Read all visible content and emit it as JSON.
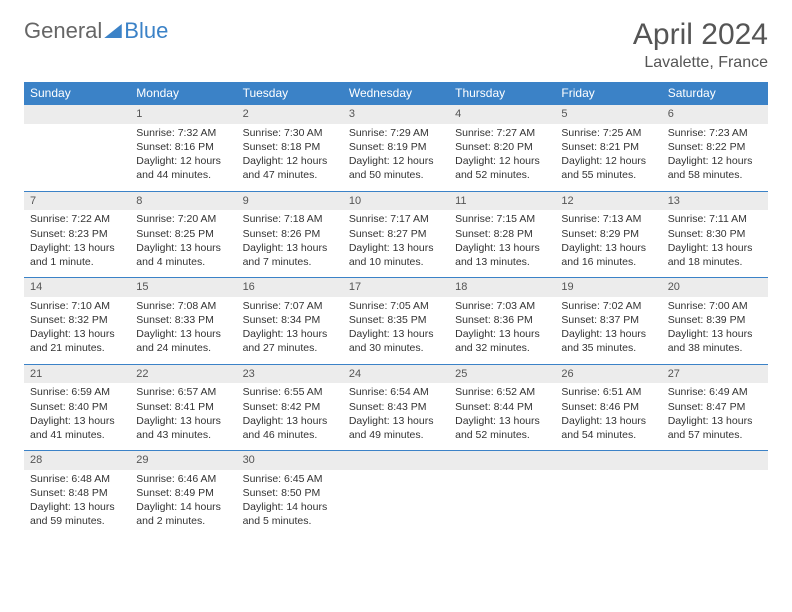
{
  "logo": {
    "text1": "General",
    "text2": "Blue"
  },
  "title": "April 2024",
  "location": "Lavalette, France",
  "colors": {
    "header_bg": "#3b82c7",
    "header_text": "#ffffff",
    "daynum_bg": "#ececec",
    "border": "#3b82c7",
    "text": "#333333",
    "title_color": "#555555"
  },
  "day_headers": [
    "Sunday",
    "Monday",
    "Tuesday",
    "Wednesday",
    "Thursday",
    "Friday",
    "Saturday"
  ],
  "weeks": [
    [
      null,
      {
        "n": "1",
        "sr": "7:32 AM",
        "ss": "8:16 PM",
        "dl": "12 hours and 44 minutes."
      },
      {
        "n": "2",
        "sr": "7:30 AM",
        "ss": "8:18 PM",
        "dl": "12 hours and 47 minutes."
      },
      {
        "n": "3",
        "sr": "7:29 AM",
        "ss": "8:19 PM",
        "dl": "12 hours and 50 minutes."
      },
      {
        "n": "4",
        "sr": "7:27 AM",
        "ss": "8:20 PM",
        "dl": "12 hours and 52 minutes."
      },
      {
        "n": "5",
        "sr": "7:25 AM",
        "ss": "8:21 PM",
        "dl": "12 hours and 55 minutes."
      },
      {
        "n": "6",
        "sr": "7:23 AM",
        "ss": "8:22 PM",
        "dl": "12 hours and 58 minutes."
      }
    ],
    [
      {
        "n": "7",
        "sr": "7:22 AM",
        "ss": "8:23 PM",
        "dl": "13 hours and 1 minute."
      },
      {
        "n": "8",
        "sr": "7:20 AM",
        "ss": "8:25 PM",
        "dl": "13 hours and 4 minutes."
      },
      {
        "n": "9",
        "sr": "7:18 AM",
        "ss": "8:26 PM",
        "dl": "13 hours and 7 minutes."
      },
      {
        "n": "10",
        "sr": "7:17 AM",
        "ss": "8:27 PM",
        "dl": "13 hours and 10 minutes."
      },
      {
        "n": "11",
        "sr": "7:15 AM",
        "ss": "8:28 PM",
        "dl": "13 hours and 13 minutes."
      },
      {
        "n": "12",
        "sr": "7:13 AM",
        "ss": "8:29 PM",
        "dl": "13 hours and 16 minutes."
      },
      {
        "n": "13",
        "sr": "7:11 AM",
        "ss": "8:30 PM",
        "dl": "13 hours and 18 minutes."
      }
    ],
    [
      {
        "n": "14",
        "sr": "7:10 AM",
        "ss": "8:32 PM",
        "dl": "13 hours and 21 minutes."
      },
      {
        "n": "15",
        "sr": "7:08 AM",
        "ss": "8:33 PM",
        "dl": "13 hours and 24 minutes."
      },
      {
        "n": "16",
        "sr": "7:07 AM",
        "ss": "8:34 PM",
        "dl": "13 hours and 27 minutes."
      },
      {
        "n": "17",
        "sr": "7:05 AM",
        "ss": "8:35 PM",
        "dl": "13 hours and 30 minutes."
      },
      {
        "n": "18",
        "sr": "7:03 AM",
        "ss": "8:36 PM",
        "dl": "13 hours and 32 minutes."
      },
      {
        "n": "19",
        "sr": "7:02 AM",
        "ss": "8:37 PM",
        "dl": "13 hours and 35 minutes."
      },
      {
        "n": "20",
        "sr": "7:00 AM",
        "ss": "8:39 PM",
        "dl": "13 hours and 38 minutes."
      }
    ],
    [
      {
        "n": "21",
        "sr": "6:59 AM",
        "ss": "8:40 PM",
        "dl": "13 hours and 41 minutes."
      },
      {
        "n": "22",
        "sr": "6:57 AM",
        "ss": "8:41 PM",
        "dl": "13 hours and 43 minutes."
      },
      {
        "n": "23",
        "sr": "6:55 AM",
        "ss": "8:42 PM",
        "dl": "13 hours and 46 minutes."
      },
      {
        "n": "24",
        "sr": "6:54 AM",
        "ss": "8:43 PM",
        "dl": "13 hours and 49 minutes."
      },
      {
        "n": "25",
        "sr": "6:52 AM",
        "ss": "8:44 PM",
        "dl": "13 hours and 52 minutes."
      },
      {
        "n": "26",
        "sr": "6:51 AM",
        "ss": "8:46 PM",
        "dl": "13 hours and 54 minutes."
      },
      {
        "n": "27",
        "sr": "6:49 AM",
        "ss": "8:47 PM",
        "dl": "13 hours and 57 minutes."
      }
    ],
    [
      {
        "n": "28",
        "sr": "6:48 AM",
        "ss": "8:48 PM",
        "dl": "13 hours and 59 minutes."
      },
      {
        "n": "29",
        "sr": "6:46 AM",
        "ss": "8:49 PM",
        "dl": "14 hours and 2 minutes."
      },
      {
        "n": "30",
        "sr": "6:45 AM",
        "ss": "8:50 PM",
        "dl": "14 hours and 5 minutes."
      },
      null,
      null,
      null,
      null
    ]
  ],
  "labels": {
    "sunrise": "Sunrise: ",
    "sunset": "Sunset: ",
    "daylight": "Daylight: "
  }
}
